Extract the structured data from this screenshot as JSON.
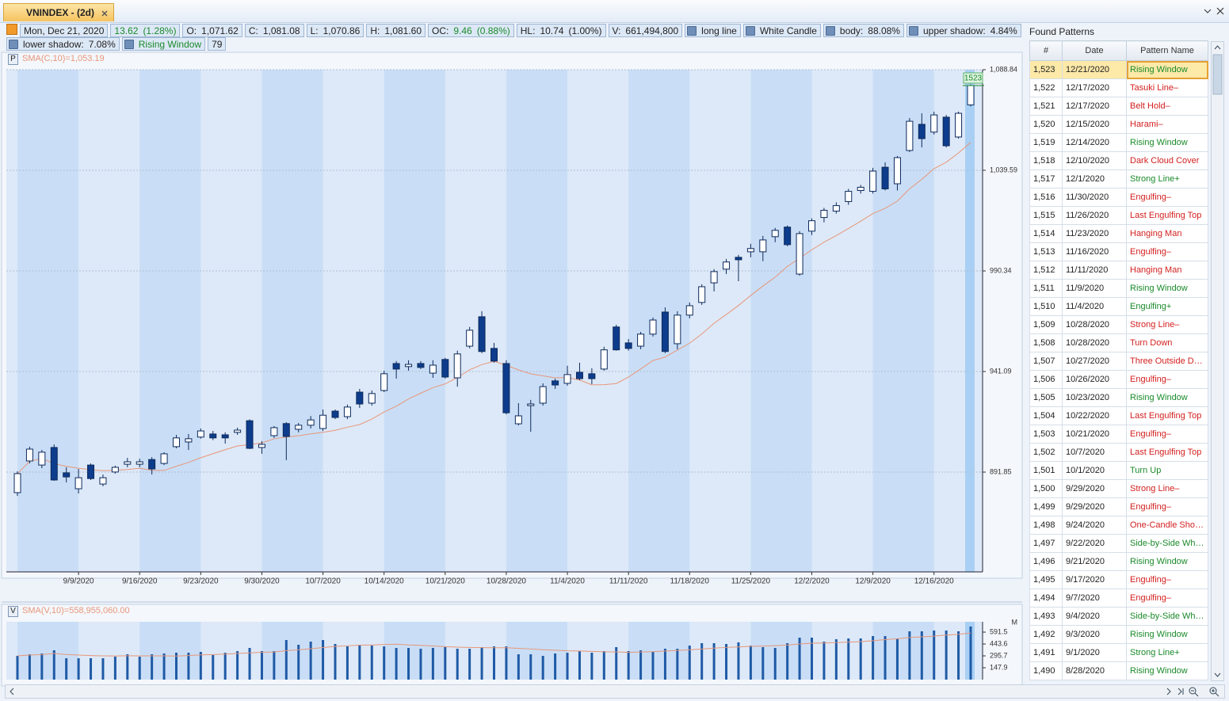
{
  "tab": {
    "title": "VNINDEX - (2d)"
  },
  "info_strip": {
    "rows": [
      [
        {
          "value": "Mon, Dec 21, 2020"
        },
        {
          "value": "13.62",
          "extra": "(1.28%)",
          "color": "#1a8a2a"
        },
        {
          "label": "O:",
          "value": "1,071.62"
        },
        {
          "label": "C:",
          "value": "1,081.08"
        },
        {
          "label": "L:",
          "value": "1,070.86"
        },
        {
          "label": "H:",
          "value": "1,081.60"
        },
        {
          "label": "OC:",
          "value": "9.46",
          "extra": "(0.88%)",
          "color": "#1a8a2a"
        },
        {
          "label": "HL:",
          "value": "10.74",
          "extra": "(1.00%)"
        },
        {
          "label": "V:",
          "value": "661,494,800"
        },
        {
          "value": "long line",
          "help_icon": true
        },
        {
          "value": "White Candle",
          "help_icon": true
        },
        {
          "label": "body:",
          "value": "88.08%",
          "help_icon": true
        },
        {
          "label": "upper shadow:",
          "value": "4.84%",
          "help_icon": true
        }
      ],
      [
        {
          "label": "lower shadow:",
          "value": "7.08%",
          "help_icon": true
        },
        {
          "value": "Rising Window",
          "help_icon": true,
          "color": "#1a8a2a"
        },
        {
          "value": "79"
        }
      ]
    ]
  },
  "chart_data": [
    {
      "type": "candlestick",
      "panel_label": "P",
      "indicator": "SMA(C,10)=1,053.19",
      "sma_window": 10,
      "sma_color": "#e8967a",
      "marker_label": "1523",
      "up_color": "#ffffff",
      "down_color": "#0d3c8c",
      "grid": true,
      "categories": [
        null,
        null,
        null,
        null,
        null,
        "9/9/2020",
        null,
        null,
        null,
        null,
        "9/16/2020",
        null,
        null,
        null,
        null,
        "9/23/2020",
        null,
        null,
        null,
        null,
        "9/30/2020",
        null,
        null,
        null,
        null,
        "10/7/2020",
        null,
        null,
        null,
        null,
        "10/14/2020",
        null,
        null,
        null,
        null,
        "10/21/2020",
        null,
        null,
        null,
        null,
        "10/28/2020",
        null,
        null,
        null,
        null,
        "11/4/2020",
        null,
        null,
        null,
        null,
        "11/11/2020",
        null,
        null,
        null,
        null,
        "11/18/2020",
        null,
        null,
        null,
        null,
        "11/25/2020",
        null,
        null,
        null,
        null,
        "12/2/2020",
        null,
        null,
        null,
        null,
        "12/9/2020",
        null,
        null,
        null,
        null,
        "12/16/2020",
        null,
        null,
        null
      ],
      "open": [
        881.8,
        897.3,
        895.3,
        903.9,
        891.5,
        883.7,
        895.3,
        886.0,
        891.9,
        895.7,
        895.7,
        898.0,
        896.1,
        904.3,
        906.6,
        909.0,
        910.5,
        910.1,
        911.3,
        917.0,
        903.9,
        909.7,
        915.6,
        912.8,
        914.8,
        913.2,
        921.7,
        919.0,
        931.0,
        925.6,
        931.8,
        945.0,
        943.5,
        945.0,
        940.3,
        947.0,
        938.0,
        953.5,
        967.9,
        952.4,
        945.0,
        915.5,
        924.4,
        925.6,
        936.5,
        935.3,
        940.7,
        940.0,
        942.3,
        962.9,
        955.1,
        953.5,
        959.4,
        970.2,
        954.7,
        968.7,
        974.9,
        984.5,
        991.2,
        997.0,
        999.7,
        999.7,
        1007.1,
        1011.8,
        988.8,
        1009.8,
        1016.5,
        1019.6,
        1024.3,
        1029.7,
        1029.3,
        1041.1,
        1033.0,
        1049.3,
        1062.1,
        1058.3,
        1065.6,
        1055.9,
        1071.62
      ],
      "high": [
        892.2,
        904.3,
        902.7,
        905.4,
        894.2,
        893.4,
        896.1,
        890.7,
        895.0,
        898.8,
        898.4,
        899.2,
        901.6,
        910.1,
        910.5,
        913.2,
        912.0,
        911.3,
        913.6,
        917.7,
        907.0,
        914.4,
        916.3,
        915.9,
        919.3,
        922.5,
        922.5,
        924.9,
        932.6,
        931.8,
        941.5,
        946.2,
        946.6,
        946.2,
        946.6,
        947.8,
        951.3,
        962.9,
        970.6,
        955.1,
        946.6,
        925.6,
        927.2,
        935.3,
        937.6,
        943.9,
        945.4,
        942.7,
        953.2,
        964.0,
        957.0,
        960.5,
        967.5,
        972.5,
        970.6,
        974.9,
        983.8,
        991.2,
        996.2,
        998.2,
        1003.6,
        1007.5,
        1011.4,
        1012.6,
        1009.8,
        1016.1,
        1021.2,
        1023.9,
        1030.5,
        1032.4,
        1040.8,
        1043.5,
        1046.6,
        1065.2,
        1067.5,
        1068.3,
        1066.7,
        1068.3,
        1081.6
      ],
      "low": [
        880.2,
        896.1,
        893.8,
        887.6,
        886.8,
        881.4,
        888.0,
        884.9,
        891.1,
        894.2,
        894.2,
        890.7,
        895.3,
        903.5,
        902.7,
        908.2,
        907.5,
        905.8,
        910.1,
        903.1,
        900.8,
        908.6,
        897.7,
        911.3,
        913.2,
        912.0,
        917.8,
        917.8,
        923.3,
        924.4,
        931.0,
        937.6,
        941.5,
        942.3,
        938.0,
        937.6,
        933.7,
        952.4,
        950.1,
        945.4,
        920.1,
        914.7,
        911.6,
        924.4,
        932.6,
        934.1,
        936.8,
        934.9,
        941.5,
        951.3,
        951.3,
        952.0,
        958.2,
        950.1,
        952.0,
        967.1,
        973.7,
        980.3,
        988.8,
        985.3,
        997.0,
        995.1,
        1004.4,
        1002.4,
        988.0,
        1007.9,
        1014.1,
        1018.4,
        1022.7,
        1028.2,
        1028.2,
        1029.7,
        1029.7,
        1048.5,
        1050.8,
        1057.1,
        1050.8,
        1055.1,
        1070.86
      ],
      "close": [
        891.1,
        903.1,
        901.6,
        888.0,
        889.5,
        889.1,
        888.7,
        889.1,
        894.2,
        896.9,
        896.9,
        893.4,
        900.8,
        908.6,
        908.2,
        912.0,
        908.6,
        908.6,
        912.4,
        903.5,
        905.4,
        913.6,
        909.3,
        914.8,
        917.4,
        919.7,
        918.6,
        923.7,
        925.2,
        930.3,
        940.0,
        942.3,
        944.6,
        943.1,
        944.2,
        938.4,
        949.7,
        961.3,
        950.9,
        946.2,
        920.9,
        919.4,
        925.2,
        933.7,
        934.5,
        939.6,
        937.6,
        937.6,
        951.7,
        951.7,
        952.4,
        959.4,
        966.3,
        950.9,
        968.7,
        973.3,
        982.6,
        990.0,
        994.7,
        995.8,
        1001.3,
        1005.5,
        1010.2,
        1003.2,
        1008.6,
        1014.9,
        1020.0,
        1022.3,
        1029.3,
        1031.3,
        1039.2,
        1030.5,
        1045.8,
        1063.6,
        1055.1,
        1066.7,
        1051.6,
        1067.5,
        1081.08
      ],
      "ylim": [
        843.0,
        1088.84
      ],
      "yticks": [
        891.85,
        941.09,
        990.34,
        {
          "value": 1039.59,
          "label": "1,039.59"
        },
        {
          "value": 1088.84,
          "label": "1,088.84"
        }
      ]
    },
    {
      "type": "bar",
      "panel_label": "V",
      "indicator": "SMA(V,10)=558,955,060.00",
      "sma_window": 10,
      "sma_color": "#e8967a",
      "unit": "M",
      "color": "#1f5aa6",
      "values": [
        295.8,
        315.5,
        325.4,
        364.8,
        266.2,
        266.2,
        266.2,
        266.2,
        285.9,
        315.5,
        285.9,
        315.5,
        325.4,
        335.2,
        335.2,
        345.1,
        305.7,
        335.2,
        355.0,
        394.4,
        355.0,
        355.0,
        493.0,
        433.8,
        473.3,
        493.0,
        443.7,
        414.1,
        433.8,
        424.0,
        414.1,
        394.4,
        394.4,
        384.5,
        394.4,
        404.3,
        384.5,
        384.5,
        404.3,
        414.1,
        414.1,
        315.5,
        315.5,
        295.8,
        325.4,
        335.2,
        355.0,
        335.2,
        355.0,
        404.3,
        355.0,
        364.8,
        345.1,
        384.5,
        384.5,
        424.0,
        453.6,
        453.6,
        443.7,
        463.4,
        424.0,
        404.3,
        394.4,
        453.6,
        522.6,
        522.6,
        473.3,
        502.9,
        512.7,
        512.7,
        542.3,
        542.3,
        512.7,
        601.5,
        601.5,
        611.3,
        611.3,
        601.5,
        661.4948
      ],
      "ylim": [
        0,
        720
      ],
      "yticks": [
        147.9,
        295.7,
        443.6,
        591.5
      ]
    }
  ],
  "patterns": {
    "title": "Found Patterns",
    "columns": [
      "#",
      "Date",
      "Pattern Name"
    ],
    "rows": [
      {
        "id": "1,523",
        "date": "12/21/2020",
        "name": "Rising Window",
        "color": "#1a8a2a"
      },
      {
        "id": "1,522",
        "date": "12/17/2020",
        "name": "Tasuki Line–",
        "color": "#d42020"
      },
      {
        "id": "1,521",
        "date": "12/17/2020",
        "name": "Belt Hold–",
        "color": "#d42020"
      },
      {
        "id": "1,520",
        "date": "12/15/2020",
        "name": "Harami–",
        "color": "#d42020"
      },
      {
        "id": "1,519",
        "date": "12/14/2020",
        "name": "Rising Window",
        "color": "#1a8a2a"
      },
      {
        "id": "1,518",
        "date": "12/10/2020",
        "name": "Dark Cloud Cover",
        "color": "#d42020"
      },
      {
        "id": "1,517",
        "date": "12/1/2020",
        "name": "Strong Line+",
        "color": "#1a8a2a"
      },
      {
        "id": "1,516",
        "date": "11/30/2020",
        "name": "Engulfing–",
        "color": "#d42020"
      },
      {
        "id": "1,515",
        "date": "11/26/2020",
        "name": "Last Engulfing Top",
        "color": "#d42020"
      },
      {
        "id": "1,514",
        "date": "11/23/2020",
        "name": "Hanging Man",
        "color": "#d42020"
      },
      {
        "id": "1,513",
        "date": "11/16/2020",
        "name": "Engulfing–",
        "color": "#d42020"
      },
      {
        "id": "1,512",
        "date": "11/11/2020",
        "name": "Hanging Man",
        "color": "#d42020"
      },
      {
        "id": "1,511",
        "date": "11/9/2020",
        "name": "Rising Window",
        "color": "#1a8a2a"
      },
      {
        "id": "1,510",
        "date": "11/4/2020",
        "name": "Engulfing+",
        "color": "#1a8a2a"
      },
      {
        "id": "1,509",
        "date": "10/28/2020",
        "name": "Strong Line–",
        "color": "#d42020"
      },
      {
        "id": "1,508",
        "date": "10/28/2020",
        "name": "Turn Down",
        "color": "#d42020"
      },
      {
        "id": "1,507",
        "date": "10/27/2020",
        "name": "Three Outside D…",
        "color": "#d42020"
      },
      {
        "id": "1,506",
        "date": "10/26/2020",
        "name": "Engulfing–",
        "color": "#d42020"
      },
      {
        "id": "1,505",
        "date": "10/23/2020",
        "name": "Rising Window",
        "color": "#1a8a2a"
      },
      {
        "id": "1,504",
        "date": "10/22/2020",
        "name": "Last Engulfing Top",
        "color": "#d42020"
      },
      {
        "id": "1,503",
        "date": "10/21/2020",
        "name": "Engulfing–",
        "color": "#d42020"
      },
      {
        "id": "1,502",
        "date": "10/7/2020",
        "name": "Last Engulfing Top",
        "color": "#d42020"
      },
      {
        "id": "1,501",
        "date": "10/1/2020",
        "name": "Turn Up",
        "color": "#1a8a2a"
      },
      {
        "id": "1,500",
        "date": "9/29/2020",
        "name": "Strong Line–",
        "color": "#d42020"
      },
      {
        "id": "1,499",
        "date": "9/29/2020",
        "name": "Engulfing–",
        "color": "#d42020"
      },
      {
        "id": "1,498",
        "date": "9/24/2020",
        "name": "One-Candle Sho…",
        "color": "#d42020"
      },
      {
        "id": "1,497",
        "date": "9/22/2020",
        "name": "Side-by-Side Wh…",
        "color": "#1a8a2a"
      },
      {
        "id": "1,496",
        "date": "9/21/2020",
        "name": "Rising Window",
        "color": "#1a8a2a"
      },
      {
        "id": "1,495",
        "date": "9/17/2020",
        "name": "Engulfing–",
        "color": "#d42020"
      },
      {
        "id": "1,494",
        "date": "9/7/2020",
        "name": "Engulfing–",
        "color": "#d42020"
      },
      {
        "id": "1,493",
        "date": "9/4/2020",
        "name": "Side-by-Side Wh…",
        "color": "#1a8a2a"
      },
      {
        "id": "1,492",
        "date": "9/3/2020",
        "name": "Rising Window",
        "color": "#1a8a2a"
      },
      {
        "id": "1,491",
        "date": "9/1/2020",
        "name": "Strong Line+",
        "color": "#1a8a2a"
      },
      {
        "id": "1,490",
        "date": "8/28/2020",
        "name": "Rising Window",
        "color": "#1a8a2a"
      }
    ]
  }
}
